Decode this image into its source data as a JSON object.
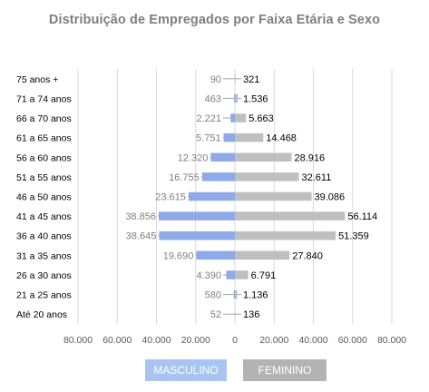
{
  "chart_data": {
    "type": "bar",
    "orientation": "horizontal-diverging",
    "title": "Distribuição de Empregados por Faixa Etária e Sexo",
    "categories": [
      "75 anos +",
      "71 a 74 anos",
      "66 a 70 anos",
      "61 a 65 anos",
      "56 a 60 anos",
      "51 a 55 anos",
      "46 a 50 anos",
      "41 a 45 anos",
      "36 a 40 anos",
      "31 a 35 anos",
      "26 a 30 anos",
      "21 a 25 anos",
      "Até 20 anos"
    ],
    "series": [
      {
        "name": "MASCULINO",
        "color": "#8eaae8",
        "values": [
          90,
          463,
          2221,
          5751,
          12320,
          16755,
          23615,
          38856,
          38645,
          19690,
          4390,
          580,
          52
        ],
        "labels": [
          "90",
          "463",
          "2.221",
          "5.751",
          "12.320",
          "16.755",
          "23.615",
          "38.856",
          "38.645",
          "19.690",
          "4.390",
          "580",
          "52"
        ]
      },
      {
        "name": "FEMININO",
        "color": "#bfbfbf",
        "values": [
          321,
          1536,
          5663,
          14468,
          28916,
          32611,
          39086,
          56114,
          51359,
          27840,
          6791,
          1136,
          136
        ],
        "labels": [
          "321",
          "1.536",
          "5.663",
          "14.468",
          "28.916",
          "32.611",
          "39.086",
          "56.114",
          "51.359",
          "27.840",
          "6.791",
          "1.136",
          "136"
        ]
      }
    ],
    "xlim": [
      -80000,
      80000
    ],
    "xticks": [
      -80000,
      -60000,
      -40000,
      -20000,
      0,
      20000,
      40000,
      60000,
      80000
    ],
    "xtick_labels": [
      "80.000",
      "60.000",
      "40.000",
      "20.000",
      "0",
      "20.000",
      "40.000",
      "60.000",
      "80.000"
    ],
    "grid": true,
    "legend_position": "bottom"
  }
}
